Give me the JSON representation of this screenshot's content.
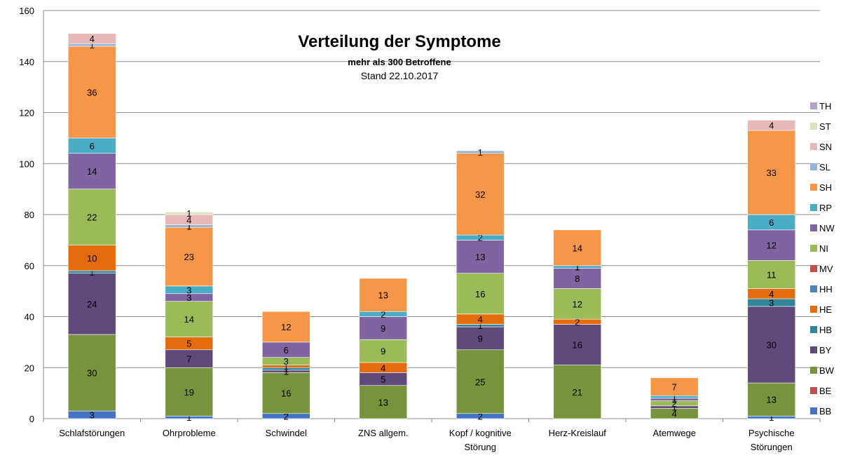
{
  "chart_data": {
    "type": "bar",
    "stacked": true,
    "title": "Verteilung der Symptome",
    "subtitle": "mehr als 300 Betroffene",
    "subtitle2": "Stand 22.10.2017",
    "ylim": [
      0,
      160
    ],
    "yticks": [
      0,
      20,
      40,
      60,
      80,
      100,
      120,
      140,
      160
    ],
    "grid": true,
    "legend_position": "right",
    "categories": [
      "Schlafstörungen",
      "Ohrprobleme",
      "Schwindel",
      "ZNS allgem.",
      "Kopf / kognitive Störung",
      "Herz-Kreislauf",
      "Atemwege",
      "Psychische Störungen"
    ],
    "category_lines": [
      [
        "Schlafstörungen"
      ],
      [
        "Ohrprobleme"
      ],
      [
        "Schwindel"
      ],
      [
        "ZNS allgem."
      ],
      [
        "Kopf / kognitive",
        "Störung"
      ],
      [
        "Herz-Kreislauf"
      ],
      [
        "Atemwege"
      ],
      [
        "Psychische",
        "Störungen"
      ]
    ],
    "series": [
      {
        "name": "BB",
        "color": "#4472C4",
        "values": [
          3,
          1,
          2,
          0,
          2,
          0,
          0,
          1
        ]
      },
      {
        "name": "BE",
        "color": "#C0504D",
        "values": [
          0,
          0,
          0,
          0,
          0,
          0,
          0,
          0
        ]
      },
      {
        "name": "BW",
        "color": "#77933C",
        "values": [
          30,
          19,
          16,
          13,
          25,
          21,
          4,
          13
        ]
      },
      {
        "name": "BY",
        "color": "#604A7B",
        "values": [
          24,
          7,
          1,
          5,
          9,
          16,
          1,
          30
        ]
      },
      {
        "name": "HB",
        "color": "#31859C",
        "values": [
          1,
          0,
          1,
          0,
          1,
          0,
          0,
          3
        ]
      },
      {
        "name": "HE",
        "color": "#E46C0A",
        "values": [
          10,
          5,
          1,
          4,
          4,
          2,
          0,
          4
        ]
      },
      {
        "name": "HH",
        "color": "#4F81BD",
        "values": [
          0,
          0,
          0,
          0,
          0,
          0,
          0,
          0
        ]
      },
      {
        "name": "MV",
        "color": "#C0504D",
        "values": [
          0,
          0,
          0,
          0,
          0,
          0,
          0,
          0
        ]
      },
      {
        "name": "NI",
        "color": "#9BBB59",
        "values": [
          22,
          14,
          3,
          9,
          16,
          12,
          2,
          11
        ]
      },
      {
        "name": "NW",
        "color": "#8064A2",
        "values": [
          14,
          3,
          6,
          9,
          13,
          8,
          1,
          12
        ]
      },
      {
        "name": "RP",
        "color": "#4BACC6",
        "values": [
          6,
          3,
          0,
          2,
          2,
          1,
          1,
          6
        ]
      },
      {
        "name": "SH",
        "color": "#F79646",
        "values": [
          36,
          23,
          12,
          13,
          32,
          14,
          7,
          33
        ]
      },
      {
        "name": "SL",
        "color": "#95B3D7",
        "values": [
          1,
          1,
          0,
          0,
          1,
          0,
          0,
          0
        ]
      },
      {
        "name": "SN",
        "color": "#E6B9B8",
        "values": [
          4,
          4,
          0,
          0,
          0,
          0,
          0,
          4
        ]
      },
      {
        "name": "ST",
        "color": "#D7E4BD",
        "values": [
          0,
          1,
          0,
          0,
          0,
          0,
          0,
          0
        ]
      },
      {
        "name": "TH",
        "color": "#B3A2C7",
        "values": [
          0,
          0,
          0,
          0,
          0,
          0,
          0,
          0
        ]
      }
    ]
  }
}
